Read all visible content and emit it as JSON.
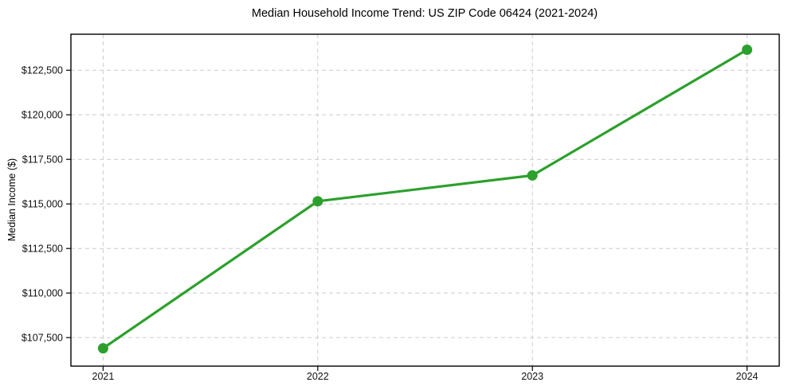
{
  "chart_data": {
    "type": "line",
    "title": "Median Household Income Trend: US ZIP Code 06424 (2021-2024)",
    "xlabel": "",
    "ylabel": "Median Income ($)",
    "x": [
      2021,
      2022,
      2023,
      2024
    ],
    "x_tick_labels": [
      "2021",
      "2022",
      "2023",
      "2024"
    ],
    "values": [
      106900,
      115150,
      116600,
      123650
    ],
    "y_ticks": [
      {
        "value": 107500,
        "label": "$107,500"
      },
      {
        "value": 110000,
        "label": "$110,000"
      },
      {
        "value": 112500,
        "label": "$112,500"
      },
      {
        "value": 115000,
        "label": "$115,000"
      },
      {
        "value": 117500,
        "label": "$117,500"
      },
      {
        "value": 120000,
        "label": "$120,000"
      },
      {
        "value": 122500,
        "label": "$122,500"
      }
    ],
    "xlim": [
      2020.85,
      2024.15
    ],
    "ylim": [
      105900,
      124520
    ],
    "grid": true,
    "grid_style": "dashed",
    "legend": "none",
    "line_color": "#2ca02c",
    "marker": "circle",
    "grid_color": "#cccccc",
    "axis_color": "#000000",
    "tick_label_color": "#111111",
    "background_color": "#ffffff"
  }
}
